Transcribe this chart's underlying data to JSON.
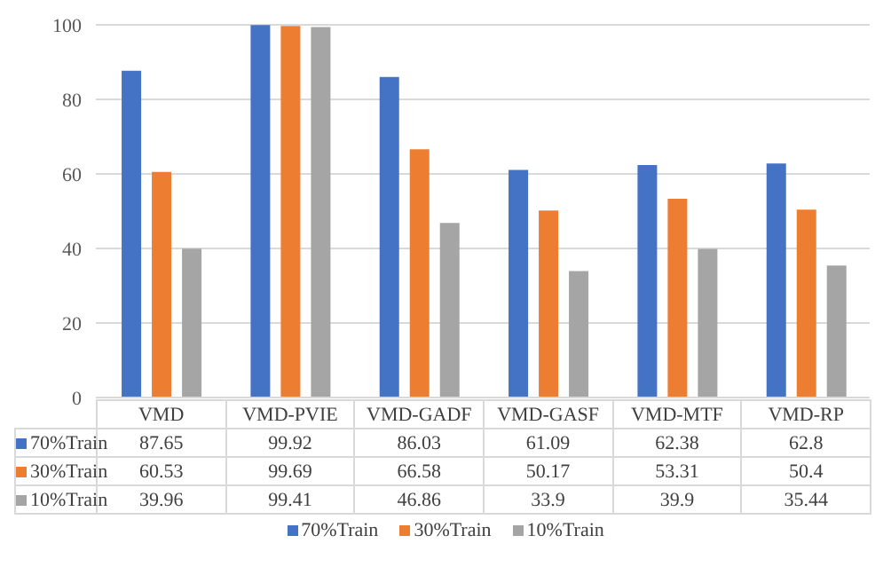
{
  "chart_data": {
    "type": "bar",
    "categories": [
      "VMD",
      "VMD-PVIE",
      "VMD-GADF",
      "VMD-GASF",
      "VMD-MTF",
      "VMD-RP"
    ],
    "series": [
      {
        "name": "70%Train",
        "color": "#4472c4",
        "values": [
          87.65,
          99.92,
          86.03,
          61.09,
          62.38,
          62.8
        ]
      },
      {
        "name": "30%Train",
        "color": "#ed7d31",
        "values": [
          60.53,
          99.69,
          66.58,
          50.17,
          53.31,
          50.4
        ]
      },
      {
        "name": "10%Train",
        "color": "#a5a5a5",
        "values": [
          39.96,
          99.41,
          46.86,
          33.9,
          39.9,
          35.44
        ]
      }
    ],
    "ylim": [
      0,
      100
    ],
    "yticks": [
      0,
      20,
      40,
      60,
      80,
      100
    ],
    "grid": "y",
    "legend": "bottom",
    "data_labels": true
  }
}
